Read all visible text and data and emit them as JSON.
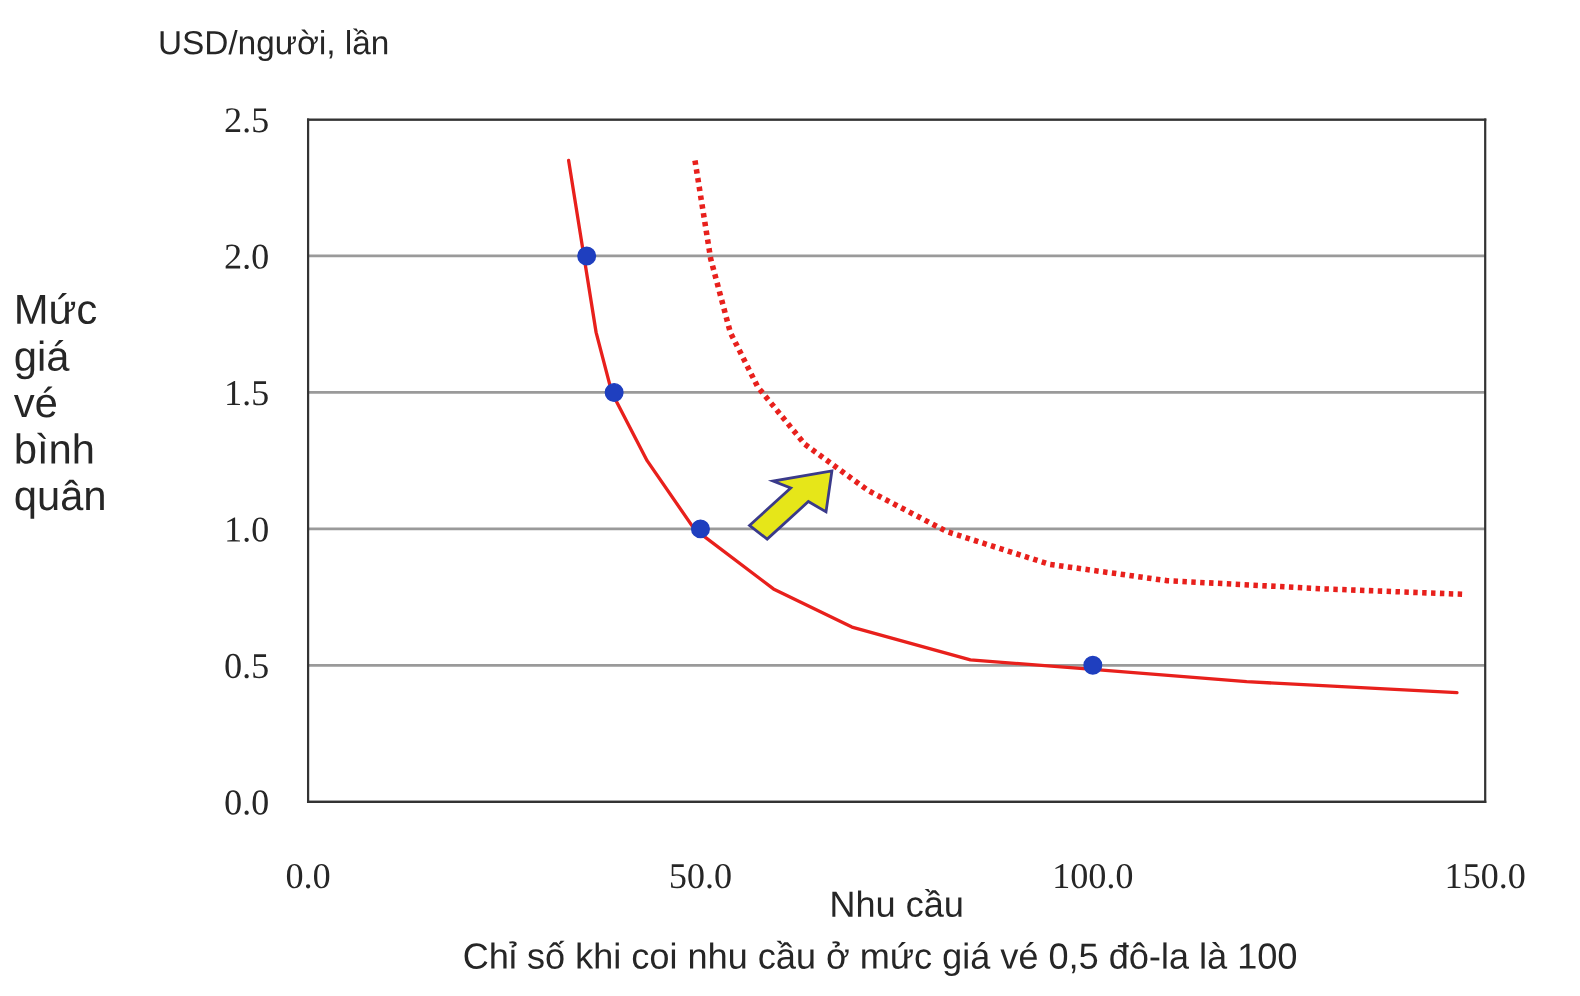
{
  "chart_data": {
    "type": "line",
    "xlabel": "Nhu cầu",
    "ylabel": "Mức\ngiá\nvé\nbình\nquân",
    "annotations": [
      "USD/người, lần",
      "Chỉ số khi coi nhu cầu ở mức giá vé 0,5 đô-la là 100"
    ],
    "xlim": [
      0,
      150
    ],
    "xticks": [
      {
        "value": 0,
        "label": "0.0"
      },
      {
        "value": 50,
        "label": "50.0"
      },
      {
        "value": 100,
        "label": "100.0"
      },
      {
        "value": 150,
        "label": "150.0"
      }
    ],
    "ylim": [
      0,
      2.5
    ],
    "yticks": [
      {
        "value": 0,
        "label": "0.0"
      },
      {
        "value": 0.5,
        "label": "0.5"
      },
      {
        "value": 1.0,
        "label": "1.0"
      },
      {
        "value": 1.5,
        "label": "1.5"
      },
      {
        "value": 2.0,
        "label": "2.0"
      },
      {
        "value": 2.5,
        "label": "2.5"
      }
    ],
    "grid": "y",
    "legend": false,
    "series": [
      {
        "color": "#e8201c",
        "line_style": "solid",
        "x": [
          33.2,
          36.7,
          38.7,
          43.2,
          49.2,
          59.3,
          69.3,
          84.4,
          100,
          119.6,
          146.4
        ],
        "values": [
          2.35,
          1.72,
          1.5,
          1.25,
          1.0,
          0.78,
          0.64,
          0.52,
          0.485,
          0.44,
          0.4
        ]
      },
      {
        "color": "#e8201c",
        "line_style": "dotted",
        "x": [
          49.3,
          51.3,
          53.8,
          57.3,
          63.3,
          71.4,
          81.4,
          94.5,
          109.5,
          129.6,
          147.4
        ],
        "values": [
          2.35,
          1.99,
          1.72,
          1.52,
          1.31,
          1.14,
          0.99,
          0.87,
          0.81,
          0.78,
          0.76
        ]
      },
      {
        "type": "scatter",
        "color": "#1f3fbf",
        "marker": "circle",
        "x": [
          35.5,
          39,
          50,
          100
        ],
        "values": [
          2.0,
          1.5,
          1.0,
          0.5
        ]
      }
    ]
  }
}
